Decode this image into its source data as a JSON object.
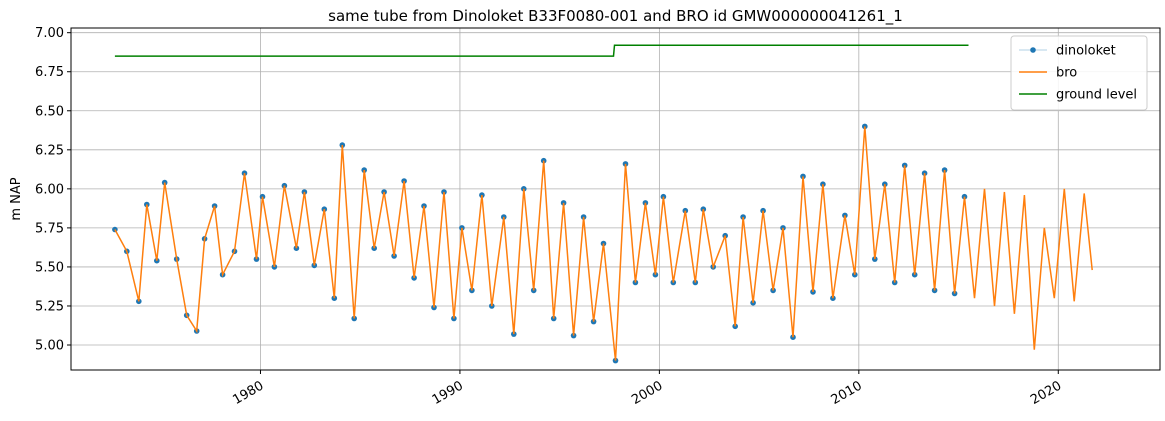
{
  "chart_data": {
    "type": "line",
    "title": "same tube from Dinoloket B33F0080-001 and BRO id GMW000000041261_1",
    "xlabel": "",
    "ylabel": "m NAP",
    "xlim": [
      1970.5,
      2025.1
    ],
    "ylim": [
      4.84,
      7.03
    ],
    "x_ticks": [
      1980,
      1990,
      2000,
      2010,
      2020
    ],
    "y_ticks": [
      5.0,
      5.25,
      5.5,
      5.75,
      6.0,
      6.25,
      6.5,
      6.75,
      7.0
    ],
    "y_tick_labels": [
      "5.00",
      "5.25",
      "5.50",
      "5.75",
      "6.00",
      "6.25",
      "6.50",
      "6.75",
      "7.00"
    ],
    "grid": true,
    "legend_position": "top-right",
    "series": [
      {
        "name": "dinoloket",
        "style": "line+markers",
        "color": "#1f77b4",
        "x": [
          1972.7,
          1973.3,
          1973.9,
          1974.3,
          1974.8,
          1975.2,
          1975.8,
          1976.3,
          1976.8,
          1977.2,
          1977.7,
          1978.1,
          1978.7,
          1979.2,
          1979.8,
          1980.1,
          1980.7,
          1981.2,
          1981.8,
          1982.2,
          1982.7,
          1983.2,
          1983.7,
          1984.1,
          1984.7,
          1985.2,
          1985.7,
          1986.2,
          1986.7,
          1987.2,
          1987.7,
          1988.2,
          1988.7,
          1989.2,
          1989.7,
          1990.1,
          1990.6,
          1991.1,
          1991.6,
          1992.2,
          1992.7,
          1993.2,
          1993.7,
          1994.2,
          1994.7,
          1995.2,
          1995.7,
          1996.2,
          1996.7,
          1997.2,
          1997.8,
          1998.3,
          1998.8,
          1999.3,
          1999.8,
          2000.2,
          2000.7,
          2001.3,
          2001.8,
          2002.2,
          2002.7,
          2003.3,
          2003.8,
          2004.2,
          2004.7,
          2005.2,
          2005.7,
          2006.2,
          2006.7,
          2007.2,
          2007.7,
          2008.2,
          2008.7,
          2009.3,
          2009.8,
          2010.3,
          2010.8,
          2011.3,
          2011.8,
          2012.3,
          2012.8,
          2013.3,
          2013.8,
          2014.3,
          2014.8,
          2015.3
        ],
        "y": [
          5.74,
          5.6,
          5.28,
          5.9,
          5.54,
          6.04,
          5.55,
          5.19,
          5.09,
          5.68,
          5.89,
          5.45,
          5.6,
          6.1,
          5.55,
          5.95,
          5.5,
          6.02,
          5.62,
          5.98,
          5.51,
          5.87,
          5.3,
          6.28,
          5.17,
          6.12,
          5.62,
          5.98,
          5.57,
          6.05,
          5.43,
          5.89,
          5.24,
          5.98,
          5.17,
          5.75,
          5.35,
          5.96,
          5.25,
          5.82,
          5.07,
          6.0,
          5.35,
          6.18,
          5.17,
          5.91,
          5.06,
          5.82,
          5.15,
          5.65,
          4.9,
          6.16,
          5.4,
          5.91,
          5.45,
          5.95,
          5.4,
          5.86,
          5.4,
          5.87,
          5.5,
          5.7,
          5.12,
          5.82,
          5.27,
          5.86,
          5.35,
          5.75,
          5.05,
          6.08,
          5.34,
          6.03,
          5.3,
          5.83,
          5.45,
          6.4,
          5.55,
          6.03,
          5.4,
          6.15,
          5.45,
          6.1,
          5.35,
          6.12,
          5.33,
          5.95
        ]
      },
      {
        "name": "bro",
        "style": "line",
        "color": "#ff7f0e",
        "x": [
          1972.7,
          1973.3,
          1973.9,
          1974.3,
          1974.8,
          1975.2,
          1975.8,
          1976.3,
          1976.8,
          1977.2,
          1977.7,
          1978.1,
          1978.7,
          1979.2,
          1979.8,
          1980.1,
          1980.7,
          1981.2,
          1981.8,
          1982.2,
          1982.7,
          1983.2,
          1983.7,
          1984.1,
          1984.7,
          1985.2,
          1985.7,
          1986.2,
          1986.7,
          1987.2,
          1987.7,
          1988.2,
          1988.7,
          1989.2,
          1989.7,
          1990.1,
          1990.6,
          1991.1,
          1991.6,
          1992.2,
          1992.7,
          1993.2,
          1993.7,
          1994.2,
          1994.7,
          1995.2,
          1995.7,
          1996.2,
          1996.7,
          1997.2,
          1997.8,
          1998.3,
          1998.8,
          1999.3,
          1999.8,
          2000.2,
          2000.7,
          2001.3,
          2001.8,
          2002.2,
          2002.7,
          2003.3,
          2003.8,
          2004.2,
          2004.7,
          2005.2,
          2005.7,
          2006.2,
          2006.7,
          2007.2,
          2007.7,
          2008.2,
          2008.7,
          2009.3,
          2009.8,
          2010.3,
          2010.8,
          2011.3,
          2011.8,
          2012.3,
          2012.8,
          2013.3,
          2013.8,
          2014.3,
          2014.8,
          2015.3,
          2015.8,
          2016.3,
          2016.8,
          2017.3,
          2017.8,
          2018.3,
          2018.8,
          2019.3,
          2019.8,
          2020.3,
          2020.8,
          2021.3,
          2021.7
        ],
        "y": [
          5.74,
          5.6,
          5.28,
          5.9,
          5.54,
          6.04,
          5.55,
          5.19,
          5.09,
          5.68,
          5.89,
          5.45,
          5.6,
          6.1,
          5.55,
          5.95,
          5.5,
          6.02,
          5.62,
          5.98,
          5.51,
          5.87,
          5.3,
          6.28,
          5.17,
          6.12,
          5.62,
          5.98,
          5.57,
          6.05,
          5.43,
          5.89,
          5.24,
          5.98,
          5.17,
          5.75,
          5.35,
          5.96,
          5.25,
          5.82,
          5.07,
          6.0,
          5.35,
          6.18,
          5.17,
          5.91,
          5.06,
          5.82,
          5.15,
          5.65,
          4.9,
          6.16,
          5.4,
          5.91,
          5.45,
          5.95,
          5.4,
          5.86,
          5.4,
          5.87,
          5.5,
          5.7,
          5.12,
          5.82,
          5.27,
          5.86,
          5.35,
          5.75,
          5.05,
          6.08,
          5.34,
          6.03,
          5.3,
          5.83,
          5.45,
          6.4,
          5.55,
          6.03,
          5.4,
          6.15,
          5.45,
          6.1,
          5.35,
          6.12,
          5.33,
          5.95,
          5.3,
          6.0,
          5.25,
          5.98,
          5.2,
          5.96,
          4.97,
          5.75,
          5.3,
          6.0,
          5.28,
          5.97,
          5.48
        ]
      },
      {
        "name": "ground level",
        "style": "line",
        "color": "#008000",
        "x": [
          1972.7,
          1997.7,
          1997.75,
          2015.5
        ],
        "y": [
          6.85,
          6.85,
          6.92,
          6.92
        ]
      }
    ]
  }
}
